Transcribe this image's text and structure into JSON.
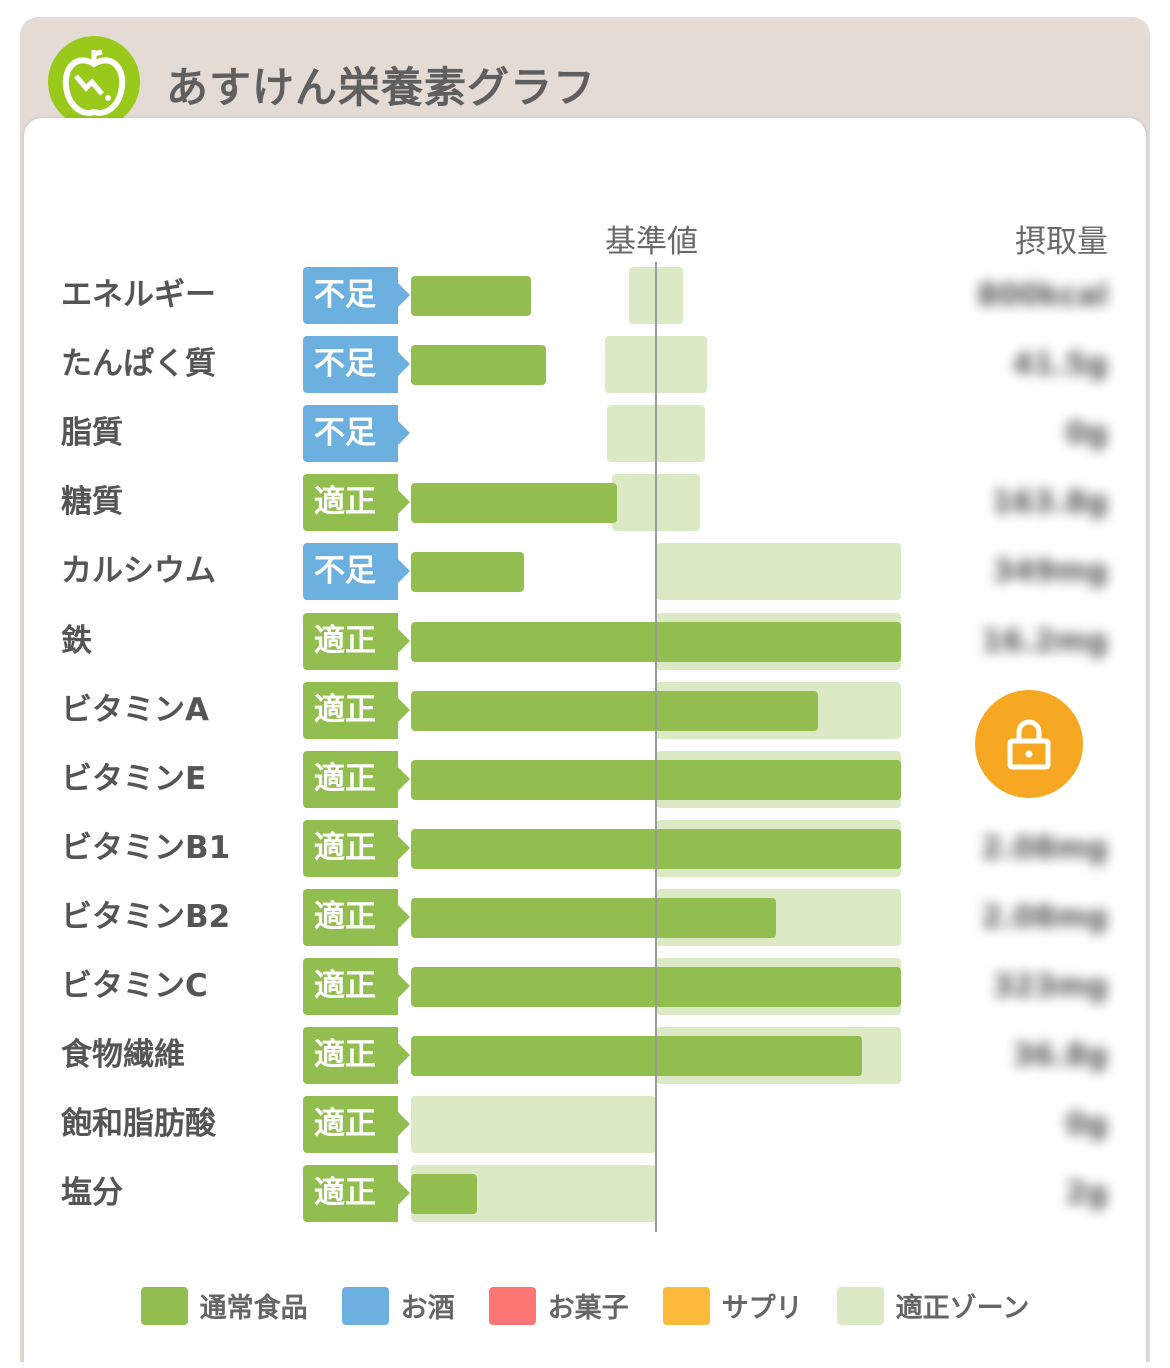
{
  "app": {
    "title": "あすけん栄養素グラフ",
    "logo": "apple-logo-icon"
  },
  "colors": {
    "normal_food": "#92be4f",
    "alcohol": "#6bb0df",
    "snack": "#fd7674",
    "supplement": "#fdb93a",
    "zone": "#dbe9c5",
    "deficient_badge": "#6bb0df",
    "proper_badge": "#92be4f",
    "lock": "#f7a823"
  },
  "chart_data": {
    "type": "bar",
    "orientation": "horizontal",
    "reference_label": "基準値",
    "intake_label": "摂取量",
    "unit": "% of reference value",
    "xlim": [
      0,
      200
    ],
    "reference_value": 100,
    "grid": false,
    "legend_placement": "bottom",
    "categories": [
      "エネルギー",
      "たんぱく質",
      "脂質",
      "糖質",
      "カルシウム",
      "鉄",
      "ビタミンA",
      "ビタミンE",
      "ビタミンB1",
      "ビタミンB2",
      "ビタミンC",
      "食物繊維",
      "飽和脂肪酸",
      "塩分"
    ],
    "status": [
      "不足",
      "不足",
      "不足",
      "適正",
      "不足",
      "適正",
      "適正",
      "適正",
      "適正",
      "適正",
      "適正",
      "適正",
      "適正",
      "適正"
    ],
    "values": [
      49,
      55,
      0,
      84,
      46,
      200,
      166,
      200,
      200,
      149,
      200,
      184,
      0,
      27
    ],
    "zones": [
      [
        89,
        111
      ],
      [
        79,
        121
      ],
      [
        80,
        120
      ],
      [
        82,
        118
      ],
      [
        100,
        200
      ],
      [
        100,
        200
      ],
      [
        100,
        200
      ],
      [
        100,
        200
      ],
      [
        100,
        200
      ],
      [
        100,
        200
      ],
      [
        100,
        200
      ],
      [
        100,
        200
      ],
      [
        0,
        100
      ],
      [
        0,
        100
      ]
    ],
    "intake_values_blurred": [
      "800kcal",
      "41.5g",
      "0g",
      "163.8g",
      "349mg",
      "16.2mg",
      "",
      "",
      "2.08mg",
      "2.08mg",
      "323mg",
      "36.8g",
      "0g",
      "2g"
    ],
    "legend": [
      {
        "label": "通常食品",
        "color": "#92be4f"
      },
      {
        "label": "お酒",
        "color": "#6bb0df"
      },
      {
        "label": "お菓子",
        "color": "#fd7674"
      },
      {
        "label": "サプリ",
        "color": "#fdb93a"
      },
      {
        "label": "適正ゾーン",
        "color": "#dbe9c5"
      }
    ]
  },
  "lock_button": {
    "icon": "lock-icon"
  }
}
